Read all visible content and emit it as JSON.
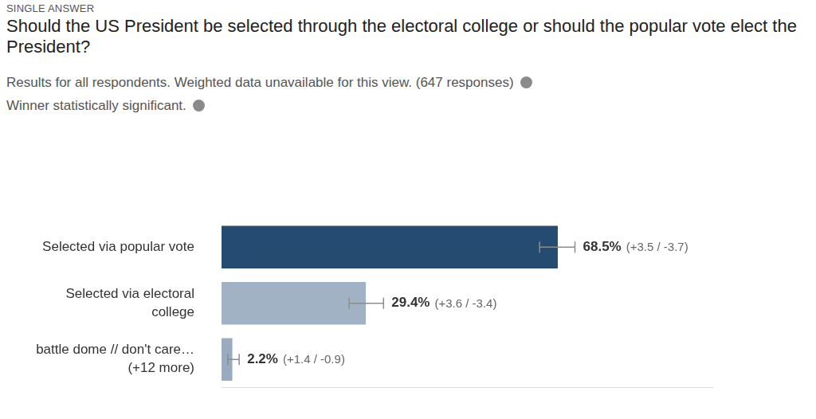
{
  "chart_data": {
    "type": "bar",
    "title": "Should the US President be selected through the electoral college or should the popular vote elect the President?",
    "subtitle": "Results for all respondents. Weighted data unavailable for this view. (647 responses)",
    "annotations": [
      "SINGLE ANSWER",
      "Winner statistically significant."
    ],
    "categories": [
      "Selected via popular vote",
      [
        "Selected via electoral",
        "college"
      ],
      [
        "battle dome // don't care…",
        "(+12 more)"
      ]
    ],
    "values": [
      68.5,
      29.4,
      2.2
    ],
    "value_labels": [
      "68.5%",
      "29.4%",
      "2.2%"
    ],
    "error_plus": [
      3.5,
      3.6,
      1.4
    ],
    "error_minus": [
      3.7,
      3.4,
      0.9
    ],
    "error_labels": [
      "(+3.5 / -3.7)",
      "(+3.6 / -3.4)",
      "(+1.4 / -0.9)"
    ],
    "colors": [
      "#264b70",
      "#a2b2c5",
      "#9aabc0"
    ],
    "orientation": "horizontal",
    "xlim": [
      0,
      100
    ],
    "grid": false,
    "data_labels": true,
    "tick_labels": "y"
  }
}
